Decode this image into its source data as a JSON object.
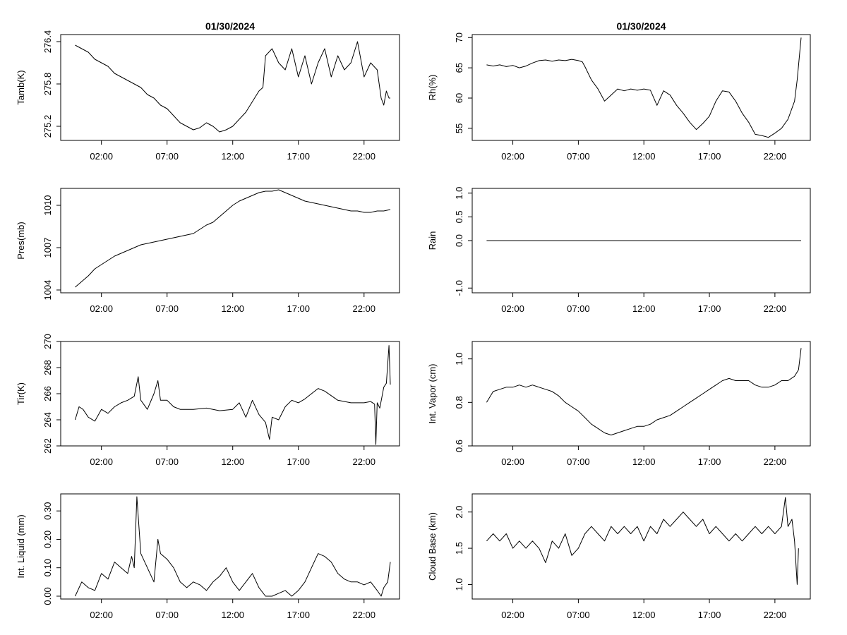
{
  "chart_data": [
    {
      "type": "line",
      "title": "01/30/2024",
      "ylabel": "Tamb(K)",
      "xlabel": "",
      "ylim": [
        275.0,
        276.5
      ],
      "yticks": [
        "275.2",
        "275.8",
        "276.4"
      ],
      "ytick_values": [
        275.2,
        275.8,
        276.4
      ],
      "xticks": [
        "02:00",
        "07:00",
        "12:00",
        "17:00",
        "22:00"
      ],
      "xtick_values": [
        2,
        7,
        12,
        17,
        22
      ],
      "xlim": [
        -1.1,
        24.7
      ],
      "grid": false,
      "series": [
        {
          "x": [
            0.0,
            0.5,
            1.0,
            1.5,
            2.0,
            2.5,
            3.0,
            3.5,
            4.0,
            4.5,
            5.0,
            5.5,
            6.0,
            6.5,
            7.0,
            7.5,
            8.0,
            8.5,
            9.0,
            9.5,
            10.0,
            10.5,
            11.0,
            11.5,
            12.0,
            12.5,
            13.0,
            13.5,
            14.0,
            14.3,
            14.5,
            15.0,
            15.5,
            16.0,
            16.5,
            17.0,
            17.5,
            18.0,
            18.5,
            19.0,
            19.5,
            20.0,
            20.5,
            21.0,
            21.5,
            22.0,
            22.5,
            23.0,
            23.3,
            23.5,
            23.7,
            23.9,
            24.0
          ],
          "y": [
            276.35,
            276.3,
            276.25,
            276.15,
            276.1,
            276.05,
            275.95,
            275.9,
            275.85,
            275.8,
            275.75,
            275.65,
            275.6,
            275.5,
            275.45,
            275.35,
            275.25,
            275.2,
            275.15,
            275.18,
            275.25,
            275.2,
            275.12,
            275.15,
            275.2,
            275.3,
            275.4,
            275.55,
            275.7,
            275.75,
            276.2,
            276.3,
            276.1,
            276.0,
            276.3,
            275.9,
            276.2,
            275.8,
            276.1,
            276.3,
            275.9,
            276.2,
            276.0,
            276.1,
            276.4,
            275.9,
            276.1,
            276.0,
            275.6,
            275.5,
            275.7,
            275.6,
            275.6
          ]
        }
      ]
    },
    {
      "type": "line",
      "title": "01/30/2024",
      "ylabel": "Rh(%)",
      "xlabel": "",
      "ylim": [
        53,
        70.5
      ],
      "yticks": [
        "55",
        "60",
        "65",
        "70"
      ],
      "ytick_values": [
        55,
        60,
        65,
        70
      ],
      "xticks": [
        "02:00",
        "07:00",
        "12:00",
        "17:00",
        "22:00"
      ],
      "xtick_values": [
        2,
        7,
        12,
        17,
        22
      ],
      "xlim": [
        -1.1,
        24.7
      ],
      "grid": false,
      "series": [
        {
          "x": [
            0.0,
            0.5,
            1.0,
            1.5,
            2.0,
            2.5,
            3.0,
            3.5,
            4.0,
            4.5,
            5.0,
            5.5,
            6.0,
            6.5,
            7.0,
            7.3,
            7.5,
            8.0,
            8.5,
            9.0,
            9.5,
            10.0,
            10.5,
            11.0,
            11.5,
            12.0,
            12.5,
            13.0,
            13.5,
            14.0,
            14.5,
            15.0,
            15.5,
            16.0,
            16.5,
            17.0,
            17.5,
            18.0,
            18.5,
            19.0,
            19.5,
            20.0,
            20.5,
            21.0,
            21.5,
            22.0,
            22.5,
            23.0,
            23.5,
            23.7,
            24.0
          ],
          "y": [
            65.5,
            65.3,
            65.5,
            65.2,
            65.4,
            65.0,
            65.3,
            65.8,
            66.2,
            66.3,
            66.1,
            66.3,
            66.2,
            66.4,
            66.2,
            66.0,
            65.2,
            63.0,
            61.5,
            59.5,
            60.5,
            61.5,
            61.2,
            61.5,
            61.3,
            61.5,
            61.3,
            58.8,
            61.2,
            60.5,
            58.8,
            57.5,
            56.0,
            54.8,
            55.8,
            57.0,
            59.5,
            61.2,
            61.0,
            59.5,
            57.5,
            56.0,
            54.0,
            53.8,
            53.5,
            54.2,
            55.0,
            56.5,
            59.5,
            63.0,
            70.0
          ]
        }
      ]
    },
    {
      "type": "line",
      "title": "",
      "ylabel": "Pres(mb)",
      "xlabel": "",
      "ylim": [
        1003.8,
        1011.2
      ],
      "yticks": [
        "1004",
        "1007",
        "1010"
      ],
      "ytick_values": [
        1004,
        1007,
        1010
      ],
      "xticks": [
        "02:00",
        "07:00",
        "12:00",
        "17:00",
        "22:00"
      ],
      "xtick_values": [
        2,
        7,
        12,
        17,
        22
      ],
      "xlim": [
        -1.1,
        24.7
      ],
      "grid": false,
      "series": [
        {
          "x": [
            0.0,
            0.5,
            1.0,
            1.5,
            2.0,
            2.5,
            3.0,
            3.5,
            4.0,
            4.5,
            5.0,
            5.5,
            6.0,
            6.5,
            7.0,
            7.5,
            8.0,
            8.5,
            9.0,
            9.5,
            10.0,
            10.5,
            11.0,
            11.5,
            12.0,
            12.5,
            13.0,
            13.5,
            14.0,
            14.5,
            15.0,
            15.5,
            16.0,
            16.5,
            17.0,
            17.5,
            18.0,
            18.5,
            19.0,
            19.5,
            20.0,
            20.5,
            21.0,
            21.5,
            22.0,
            22.5,
            23.0,
            23.5,
            24.0
          ],
          "y": [
            1004.2,
            1004.6,
            1005.0,
            1005.5,
            1005.8,
            1006.1,
            1006.4,
            1006.6,
            1006.8,
            1007.0,
            1007.2,
            1007.3,
            1007.4,
            1007.5,
            1007.6,
            1007.7,
            1007.8,
            1007.9,
            1008.0,
            1008.3,
            1008.6,
            1008.8,
            1009.2,
            1009.6,
            1010.0,
            1010.3,
            1010.5,
            1010.7,
            1010.9,
            1011.0,
            1011.0,
            1011.1,
            1010.9,
            1010.7,
            1010.5,
            1010.3,
            1010.2,
            1010.1,
            1010.0,
            1009.9,
            1009.8,
            1009.7,
            1009.6,
            1009.6,
            1009.5,
            1009.5,
            1009.6,
            1009.6,
            1009.7
          ]
        }
      ]
    },
    {
      "type": "line",
      "title": "",
      "ylabel": "Rain",
      "xlabel": "",
      "ylim": [
        -1.1,
        1.1
      ],
      "yticks": [
        "-1.0",
        "0.0",
        "0.5",
        "1.0"
      ],
      "ytick_values": [
        -1.0,
        0.0,
        0.5,
        1.0
      ],
      "xticks": [
        "02:00",
        "07:00",
        "12:00",
        "17:00",
        "22:00"
      ],
      "xtick_values": [
        2,
        7,
        12,
        17,
        22
      ],
      "xlim": [
        -1.1,
        24.7
      ],
      "grid": false,
      "series": [
        {
          "x": [
            0.0,
            24.0
          ],
          "y": [
            0.0,
            0.0
          ]
        }
      ]
    },
    {
      "type": "line",
      "title": "",
      "ylabel": "Tir(K)",
      "xlabel": "",
      "ylim": [
        262.0,
        270.0
      ],
      "yticks": [
        "262",
        "264",
        "266",
        "268",
        "270"
      ],
      "ytick_values": [
        262,
        264,
        266,
        268,
        270
      ],
      "xticks": [
        "02:00",
        "07:00",
        "12:00",
        "17:00",
        "22:00"
      ],
      "xtick_values": [
        2,
        7,
        12,
        17,
        22
      ],
      "xlim": [
        -1.1,
        24.7
      ],
      "grid": false,
      "series": [
        {
          "x": [
            0.0,
            0.3,
            0.6,
            1.0,
            1.5,
            2.0,
            2.5,
            3.0,
            3.5,
            4.0,
            4.5,
            4.8,
            5.0,
            5.5,
            6.0,
            6.3,
            6.5,
            7.0,
            7.5,
            8.0,
            9.0,
            10.0,
            11.0,
            12.0,
            12.5,
            13.0,
            13.5,
            14.0,
            14.5,
            14.8,
            15.0,
            15.5,
            16.0,
            16.5,
            17.0,
            17.5,
            18.0,
            18.5,
            19.0,
            20.0,
            21.0,
            22.0,
            22.5,
            22.8,
            22.9,
            23.0,
            23.2,
            23.5,
            23.7,
            23.9,
            24.0
          ],
          "y": [
            264.0,
            265.0,
            264.8,
            264.2,
            263.9,
            264.8,
            264.5,
            265.0,
            265.3,
            265.5,
            265.8,
            267.3,
            265.5,
            264.8,
            266.0,
            267.0,
            265.5,
            265.5,
            265.0,
            264.8,
            264.8,
            264.9,
            264.7,
            264.8,
            265.3,
            264.2,
            265.5,
            264.4,
            263.8,
            262.5,
            264.2,
            264.0,
            265.0,
            265.5,
            265.3,
            265.6,
            266.0,
            266.4,
            266.2,
            265.5,
            265.3,
            265.3,
            265.4,
            265.2,
            262.1,
            265.3,
            264.9,
            266.5,
            266.8,
            269.7,
            266.7
          ]
        }
      ]
    },
    {
      "type": "line",
      "title": "",
      "ylabel": "Int. Vapor (cm)",
      "xlabel": "",
      "ylim": [
        0.6,
        1.08
      ],
      "yticks": [
        "0.6",
        "0.8",
        "1.0"
      ],
      "ytick_values": [
        0.6,
        0.8,
        1.0
      ],
      "xticks": [
        "02:00",
        "07:00",
        "12:00",
        "17:00",
        "22:00"
      ],
      "xtick_values": [
        2,
        7,
        12,
        17,
        22
      ],
      "xlim": [
        -1.1,
        24.7
      ],
      "grid": false,
      "series": [
        {
          "x": [
            0.0,
            0.5,
            1.0,
            1.5,
            2.0,
            2.5,
            3.0,
            3.5,
            4.0,
            4.5,
            5.0,
            5.5,
            6.0,
            6.5,
            7.0,
            7.5,
            8.0,
            8.5,
            9.0,
            9.5,
            10.0,
            10.5,
            11.0,
            11.5,
            12.0,
            12.5,
            13.0,
            13.5,
            14.0,
            14.5,
            15.0,
            15.5,
            16.0,
            16.5,
            17.0,
            17.5,
            18.0,
            18.5,
            19.0,
            19.5,
            20.0,
            20.5,
            21.0,
            21.5,
            22.0,
            22.5,
            23.0,
            23.5,
            23.8,
            24.0
          ],
          "y": [
            0.8,
            0.85,
            0.86,
            0.87,
            0.87,
            0.88,
            0.87,
            0.88,
            0.87,
            0.86,
            0.85,
            0.83,
            0.8,
            0.78,
            0.76,
            0.73,
            0.7,
            0.68,
            0.66,
            0.65,
            0.66,
            0.67,
            0.68,
            0.69,
            0.69,
            0.7,
            0.72,
            0.73,
            0.74,
            0.76,
            0.78,
            0.8,
            0.82,
            0.84,
            0.86,
            0.88,
            0.9,
            0.91,
            0.9,
            0.9,
            0.9,
            0.88,
            0.87,
            0.87,
            0.88,
            0.9,
            0.9,
            0.92,
            0.95,
            1.05
          ]
        }
      ]
    },
    {
      "type": "line",
      "title": "",
      "ylabel": "Int. Liquid (mm)",
      "xlabel": "",
      "ylim": [
        -0.01,
        0.36
      ],
      "yticks": [
        "0.00",
        "0.10",
        "0.20",
        "0.30"
      ],
      "ytick_values": [
        0.0,
        0.1,
        0.2,
        0.3
      ],
      "xticks": [
        "02:00",
        "07:00",
        "12:00",
        "17:00",
        "22:00"
      ],
      "xtick_values": [
        2,
        7,
        12,
        17,
        22
      ],
      "xlim": [
        -1.1,
        24.7
      ],
      "grid": false,
      "series": [
        {
          "x": [
            0.0,
            0.5,
            1.0,
            1.5,
            2.0,
            2.5,
            3.0,
            3.5,
            4.0,
            4.3,
            4.5,
            4.7,
            5.0,
            5.5,
            6.0,
            6.3,
            6.5,
            7.0,
            7.5,
            8.0,
            8.5,
            9.0,
            9.5,
            10.0,
            10.5,
            11.0,
            11.5,
            12.0,
            12.5,
            13.0,
            13.5,
            14.0,
            14.5,
            15.0,
            15.5,
            16.0,
            16.5,
            17.0,
            17.5,
            18.0,
            18.5,
            19.0,
            19.5,
            20.0,
            20.5,
            21.0,
            21.5,
            22.0,
            22.5,
            23.0,
            23.3,
            23.5,
            23.8,
            24.0
          ],
          "y": [
            0.0,
            0.05,
            0.03,
            0.02,
            0.08,
            0.06,
            0.12,
            0.1,
            0.08,
            0.14,
            0.1,
            0.35,
            0.15,
            0.1,
            0.05,
            0.2,
            0.15,
            0.13,
            0.1,
            0.05,
            0.03,
            0.05,
            0.04,
            0.02,
            0.05,
            0.07,
            0.1,
            0.05,
            0.02,
            0.05,
            0.08,
            0.03,
            0.0,
            0.0,
            0.01,
            0.02,
            0.0,
            0.02,
            0.05,
            0.1,
            0.15,
            0.14,
            0.12,
            0.08,
            0.06,
            0.05,
            0.05,
            0.04,
            0.05,
            0.02,
            0.0,
            0.03,
            0.05,
            0.12
          ]
        }
      ]
    },
    {
      "type": "line",
      "title": "",
      "ylabel": "Cloud Base (km)",
      "xlabel": "",
      "ylim": [
        0.8,
        2.25
      ],
      "yticks": [
        "1.0",
        "1.5",
        "2.0"
      ],
      "ytick_values": [
        1.0,
        1.5,
        2.0
      ],
      "xticks": [
        "02:00",
        "07:00",
        "12:00",
        "17:00",
        "22:00"
      ],
      "xtick_values": [
        2,
        7,
        12,
        17,
        22
      ],
      "xlim": [
        -1.1,
        24.7
      ],
      "grid": false,
      "series": [
        {
          "x": [
            0.0,
            0.5,
            1.0,
            1.5,
            2.0,
            2.5,
            3.0,
            3.5,
            4.0,
            4.5,
            5.0,
            5.5,
            6.0,
            6.5,
            7.0,
            7.5,
            8.0,
            8.5,
            9.0,
            9.5,
            10.0,
            10.5,
            11.0,
            11.5,
            12.0,
            12.5,
            13.0,
            13.5,
            14.0,
            14.5,
            15.0,
            15.5,
            16.0,
            16.5,
            17.0,
            17.5,
            18.0,
            18.5,
            19.0,
            19.5,
            20.0,
            20.5,
            21.0,
            21.5,
            22.0,
            22.5,
            22.8,
            23.0,
            23.3,
            23.5,
            23.7,
            23.8
          ],
          "y": [
            1.6,
            1.7,
            1.6,
            1.7,
            1.5,
            1.6,
            1.5,
            1.6,
            1.5,
            1.3,
            1.6,
            1.5,
            1.7,
            1.4,
            1.5,
            1.7,
            1.8,
            1.7,
            1.6,
            1.8,
            1.7,
            1.8,
            1.7,
            1.8,
            1.6,
            1.8,
            1.7,
            1.9,
            1.8,
            1.9,
            2.0,
            1.9,
            1.8,
            1.9,
            1.7,
            1.8,
            1.7,
            1.6,
            1.7,
            1.6,
            1.7,
            1.8,
            1.7,
            1.8,
            1.7,
            1.8,
            2.2,
            1.8,
            1.9,
            1.6,
            1.0,
            1.5
          ]
        }
      ]
    }
  ]
}
